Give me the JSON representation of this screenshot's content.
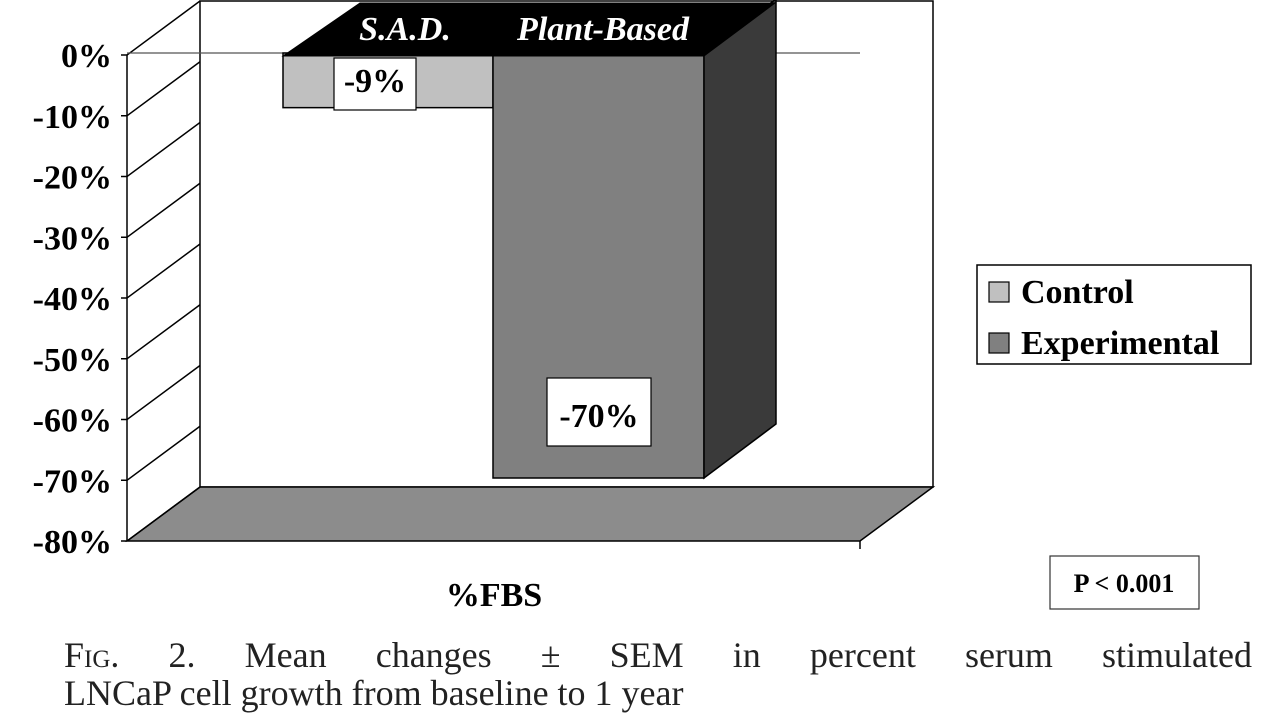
{
  "chart_data": {
    "type": "bar",
    "categories": [
      "S.A.D.",
      "Plant-Based"
    ],
    "series": [
      {
        "name": "Control",
        "values": [
          -9,
          null
        ],
        "color": "#c0c0c0"
      },
      {
        "name": "Experimental",
        "values": [
          null,
          -70
        ],
        "color": "#808080"
      }
    ],
    "data_labels": [
      "-9%",
      "-70%"
    ],
    "xlabel": "%FBS",
    "ylabel": "",
    "ylim": [
      -80,
      0
    ],
    "yticks": [
      "0%",
      "-10%",
      "-20%",
      "-30%",
      "-40%",
      "-50%",
      "-60%",
      "-70%",
      "-80%"
    ],
    "legend_position": "right",
    "grid": true,
    "style": "3d",
    "annotation": "P < 0.001"
  },
  "caption": {
    "fig_prefix": "Fig.",
    "line1": "2. Mean changes ± SEM in percent serum stimulated",
    "line2": "LNCaP cell growth from baseline to 1 year"
  },
  "colors": {
    "control": "#c0c0c0",
    "experimental": "#808080",
    "experimental_side": "#3a3a3a",
    "floor": "#8c8c8c",
    "header": "#000000"
  }
}
